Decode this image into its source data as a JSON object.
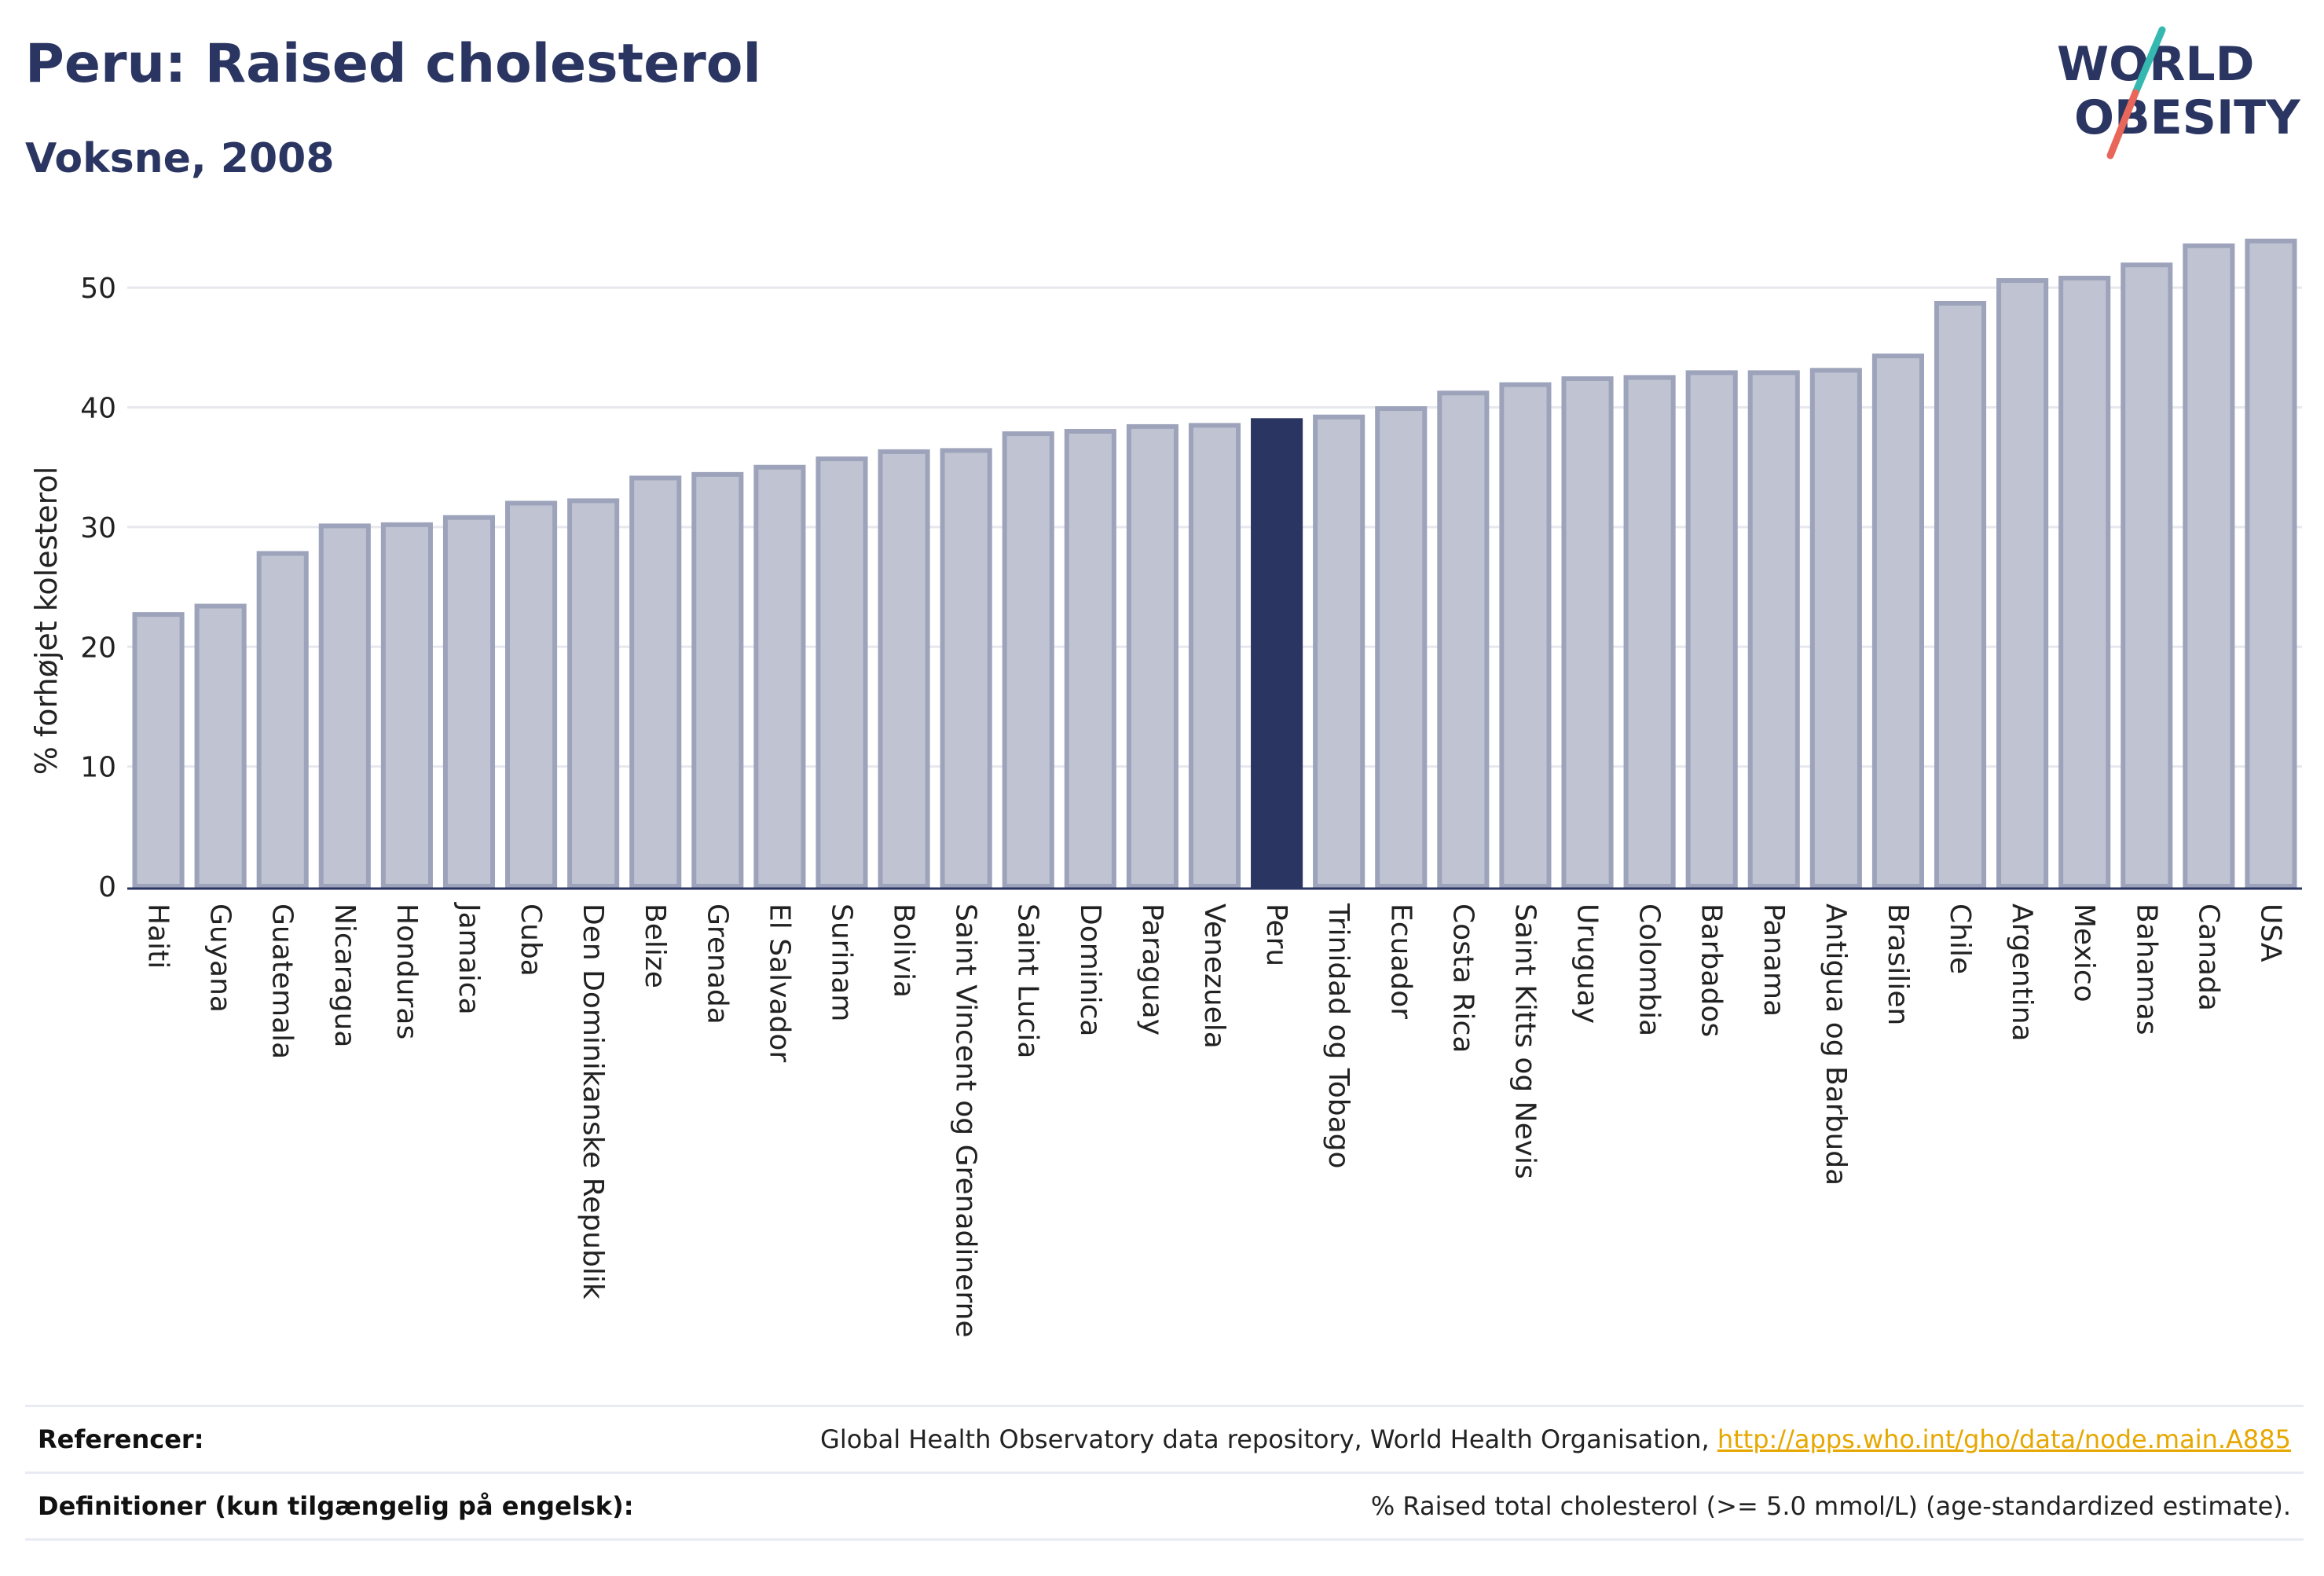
{
  "header": {
    "title": "Peru: Raised cholesterol",
    "subtitle": "Voksne, 2008"
  },
  "logo": {
    "line1": "WORLD",
    "line2": "OBESITY",
    "accent_teal": "#34b8b0",
    "accent_red": "#e8665a"
  },
  "colors": {
    "highlight": "#2a3562",
    "bar_fill": "#c0c4d2",
    "bar_stroke": "#9da3ba",
    "text": "#2a3562"
  },
  "chart_data": {
    "type": "bar",
    "title": "Peru: Raised cholesterol",
    "subtitle": "Voksne, 2008",
    "ylabel": "% forhøjet kolesterol",
    "xlabel": "",
    "ylim": [
      0,
      55
    ],
    "yticks": [
      0,
      10,
      20,
      30,
      40,
      50
    ],
    "grid": true,
    "highlight": "Peru",
    "categories": [
      "Haiti",
      "Guyana",
      "Guatemala",
      "Nicaragua",
      "Honduras",
      "Jamaica",
      "Cuba",
      "Den Dominikanske Republik",
      "Belize",
      "Grenada",
      "El Salvador",
      "Surinam",
      "Bolivia",
      "Saint Vincent og Grenadinerne",
      "Saint Lucia",
      "Dominica",
      "Paraguay",
      "Venezuela",
      "Peru",
      "Trinidad og Tobago",
      "Ecuador",
      "Costa Rica",
      "Saint Kitts og Nevis",
      "Uruguay",
      "Colombia",
      "Barbados",
      "Panama",
      "Antigua og Barbuda",
      "Brasilien",
      "Chile",
      "Argentina",
      "Mexico",
      "Bahamas",
      "Canada",
      "USA"
    ],
    "values": [
      22.7,
      23.4,
      27.8,
      30.1,
      30.2,
      30.8,
      32.0,
      32.2,
      34.1,
      34.4,
      35.0,
      35.7,
      36.3,
      36.4,
      37.8,
      38.0,
      38.4,
      38.5,
      38.9,
      39.2,
      39.9,
      41.2,
      41.9,
      42.4,
      42.5,
      42.9,
      42.9,
      43.1,
      44.3,
      48.7,
      50.6,
      50.8,
      51.9,
      53.5,
      53.9
    ]
  },
  "footer": {
    "references_label": "Referencer:",
    "references_text": "Global Health Observatory data repository, World Health Organisation, ",
    "references_link": "http://apps.who.int/gho/data/node.main.A885",
    "definitions_label": "Definitioner (kun tilgængelig på engelsk):",
    "definitions_text": "% Raised total cholesterol (>= 5.0 mmol/L) (age-standardized estimate)."
  }
}
